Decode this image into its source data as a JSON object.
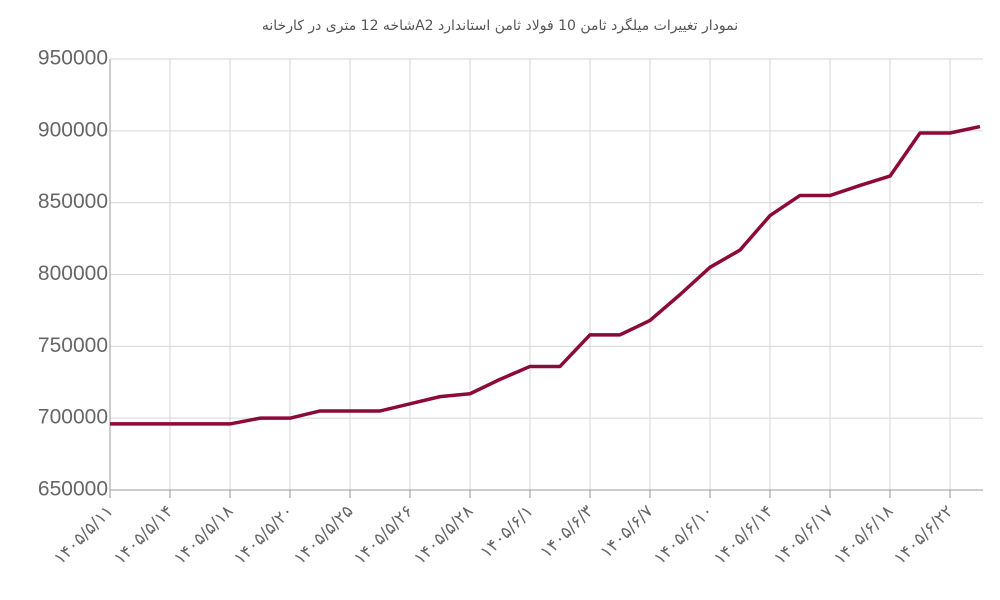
{
  "chart_data": {
    "type": "line",
    "title": "نمودار تغییرات میلگرد ثامن 10 فولاد ثامن استاندارد A2شاخه 12 متری در کارخانه",
    "categories": [
      "۱۴۰۵/۵/۱۱",
      null,
      "۱۴۰۵/۵/۱۴",
      null,
      "۱۴۰۵/۵/۱۸",
      null,
      "۱۴۰۵/۵/۲۰",
      null,
      "۱۴۰۵/۵/۲۵",
      null,
      "۱۴۰۵/۵/۲۶",
      null,
      "۱۴۰۵/۵/۲۸",
      null,
      "۱۴۰۵/۶/۱",
      null,
      "۱۴۰۵/۶/۳",
      null,
      "۱۴۰۵/۶/۷",
      null,
      "۱۴۰۵/۶/۱۰",
      null,
      "۱۴۰۵/۶/۱۴",
      null,
      "۱۴۰۵/۶/۱۷",
      null,
      "۱۴۰۵/۶/۱۸",
      null,
      "۱۴۰۵/۶/۲۲",
      null
    ],
    "series": [
      {
        "color": "#8b0a3a",
        "values": [
          696000,
          696000,
          696000,
          696000,
          696000,
          700000,
          700000,
          705000,
          705000,
          705000,
          710000,
          715000,
          717000,
          727000,
          736000,
          736000,
          758000,
          758000,
          768000,
          786000,
          805000,
          817000,
          841000,
          855000,
          855000,
          862000,
          868500,
          898500,
          898500,
          903000
        ]
      }
    ],
    "ylim": [
      650000,
      950000
    ],
    "yticks": [
      650000,
      700000,
      750000,
      800000,
      850000,
      900000,
      950000
    ],
    "grid": true
  }
}
